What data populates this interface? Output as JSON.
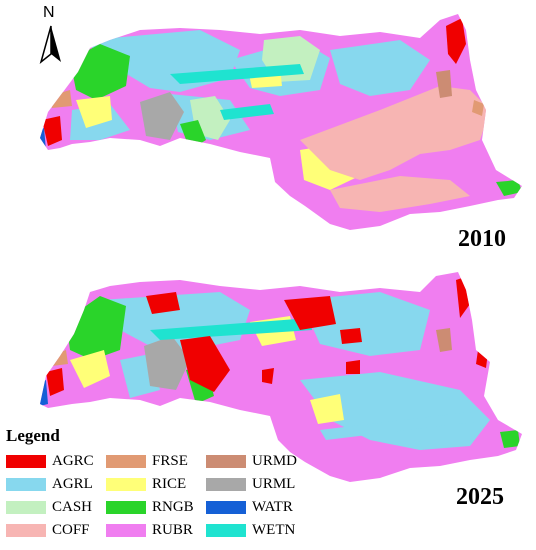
{
  "north_label": "N",
  "maps": [
    {
      "year": "2010"
    },
    {
      "year": "2025"
    }
  ],
  "legend": {
    "title": "Legend",
    "items": [
      {
        "code": "AGRC",
        "color": "#f00000"
      },
      {
        "code": "AGRL",
        "color": "#87d8ee"
      },
      {
        "code": "CASH",
        "color": "#c3f0c0"
      },
      {
        "code": "COFF",
        "color": "#f7b5b3"
      },
      {
        "code": "FRSE",
        "color": "#e19a73"
      },
      {
        "code": "RICE",
        "color": "#ffff78"
      },
      {
        "code": "RNGB",
        "color": "#2ad42a"
      },
      {
        "code": "RUBR",
        "color": "#f07ef0"
      },
      {
        "code": "URMD",
        "color": "#cc8c73"
      },
      {
        "code": "URML",
        "color": "#a8a8a8"
      },
      {
        "code": "WATR",
        "color": "#1560d6"
      },
      {
        "code": "WETN",
        "color": "#1fe3d0"
      }
    ]
  }
}
